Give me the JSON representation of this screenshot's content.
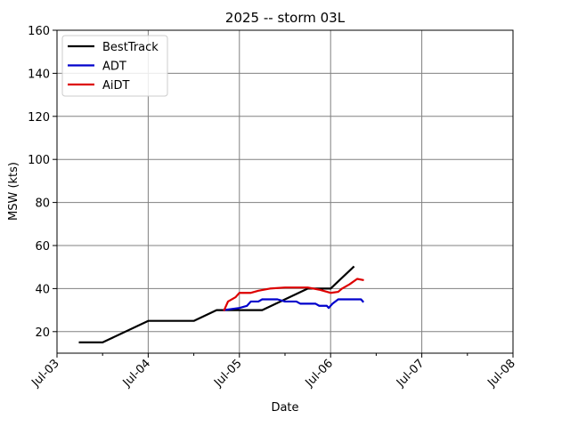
{
  "chart_data": {
    "type": "line",
    "title": "2025 -- storm 03L",
    "xlabel": "Date",
    "ylabel": "MSW (kts)",
    "xlim": [
      "2025-07-03",
      "2025-07-08"
    ],
    "ylim": [
      10,
      160
    ],
    "x_tick_labels": [
      "Jul-03",
      "Jul-04",
      "Jul-05",
      "Jul-06",
      "Jul-07",
      "Jul-08"
    ],
    "y_ticks": [
      20,
      40,
      60,
      80,
      100,
      120,
      140,
      160
    ],
    "grid": true,
    "legend_position": "top-left",
    "series": [
      {
        "name": "BestTrack",
        "color": "#000000",
        "points": [
          [
            "2025-07-03 06:00",
            15
          ],
          [
            "2025-07-03 12:00",
            15
          ],
          [
            "2025-07-04 00:00",
            25
          ],
          [
            "2025-07-04 12:00",
            25
          ],
          [
            "2025-07-04 18:00",
            30
          ],
          [
            "2025-07-05 00:00",
            30
          ],
          [
            "2025-07-05 06:00",
            30
          ],
          [
            "2025-07-05 12:00",
            35
          ],
          [
            "2025-07-05 18:00",
            40
          ],
          [
            "2025-07-06 00:00",
            40
          ],
          [
            "2025-07-06 06:00",
            50
          ]
        ]
      },
      {
        "name": "ADT",
        "color": "#0000cc",
        "points": [
          [
            "2025-07-04 20:00",
            30
          ],
          [
            "2025-07-05 00:00",
            31
          ],
          [
            "2025-07-05 02:00",
            32
          ],
          [
            "2025-07-05 03:00",
            34
          ],
          [
            "2025-07-05 05:00",
            34
          ],
          [
            "2025-07-05 06:00",
            35
          ],
          [
            "2025-07-05 10:00",
            35
          ],
          [
            "2025-07-05 12:00",
            34
          ],
          [
            "2025-07-05 15:00",
            34
          ],
          [
            "2025-07-05 16:00",
            33
          ],
          [
            "2025-07-05 20:00",
            33
          ],
          [
            "2025-07-05 21:00",
            32
          ],
          [
            "2025-07-05 23:00",
            32
          ],
          [
            "2025-07-05 23:30",
            31
          ],
          [
            "2025-07-06 00:30",
            33
          ],
          [
            "2025-07-06 02:00",
            35
          ],
          [
            "2025-07-06 08:00",
            35
          ],
          [
            "2025-07-06 08:30",
            34
          ]
        ]
      },
      {
        "name": "AiDT",
        "color": "#dd0000",
        "points": [
          [
            "2025-07-04 20:00",
            30
          ],
          [
            "2025-07-04 21:00",
            34
          ],
          [
            "2025-07-04 23:00",
            36
          ],
          [
            "2025-07-05 00:00",
            38
          ],
          [
            "2025-07-05 03:00",
            38
          ],
          [
            "2025-07-05 05:00",
            39
          ],
          [
            "2025-07-05 08:00",
            40
          ],
          [
            "2025-07-05 12:00",
            40.5
          ],
          [
            "2025-07-05 18:00",
            40.5
          ],
          [
            "2025-07-05 21:00",
            39.5
          ],
          [
            "2025-07-06 00:00",
            38
          ],
          [
            "2025-07-06 02:00",
            38.5
          ],
          [
            "2025-07-06 03:00",
            40
          ],
          [
            "2025-07-06 05:00",
            42
          ],
          [
            "2025-07-06 07:00",
            44.5
          ],
          [
            "2025-07-06 08:30",
            44
          ]
        ]
      }
    ]
  }
}
